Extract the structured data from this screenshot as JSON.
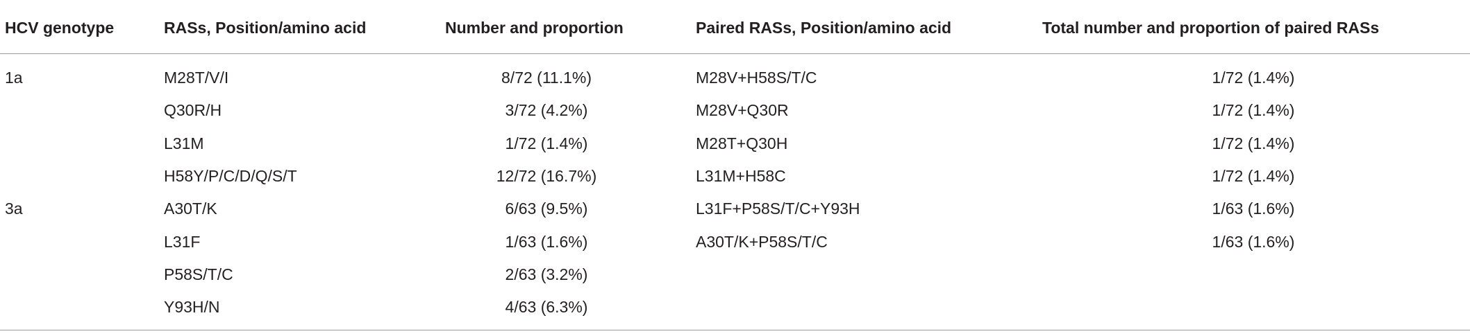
{
  "table": {
    "header": [
      "HCV genotype",
      "RASs, Position/amino acid",
      "Number and proportion",
      "Paired RASs, Position/amino acid",
      "Total number and proportion of paired RASs"
    ],
    "groups": [
      {
        "genotype": "1a",
        "ras": [
          "M28T/V/I",
          "Q30R/H",
          "L31M",
          "H58Y/P/C/D/Q/S/T"
        ],
        "number": [
          "8/72 (11.1%)",
          "3/72 (4.2%)",
          "1/72 (1.4%)",
          "12/72 (16.7%)"
        ],
        "paired": [
          "M28V+H58S/T/C",
          "M28V+Q30R",
          "M28T+Q30H",
          "L31M+H58C"
        ],
        "total": [
          "1/72 (1.4%)",
          "1/72 (1.4%)",
          "1/72 (1.4%)",
          "1/72 (1.4%)"
        ]
      },
      {
        "genotype": "3a",
        "ras": [
          "A30T/K",
          "L31F",
          "P58S/T/C",
          "Y93H/N"
        ],
        "number": [
          "6/63 (9.5%)",
          "1/63 (1.6%)",
          "2/63 (3.2%)",
          "4/63 (6.3%)"
        ],
        "paired": [
          "L31F+P58S/T/C+Y93H",
          "A30T/K+P58S/T/C"
        ],
        "total": [
          "1/63 (1.6%)",
          "1/63 (1.6%)"
        ]
      }
    ]
  }
}
